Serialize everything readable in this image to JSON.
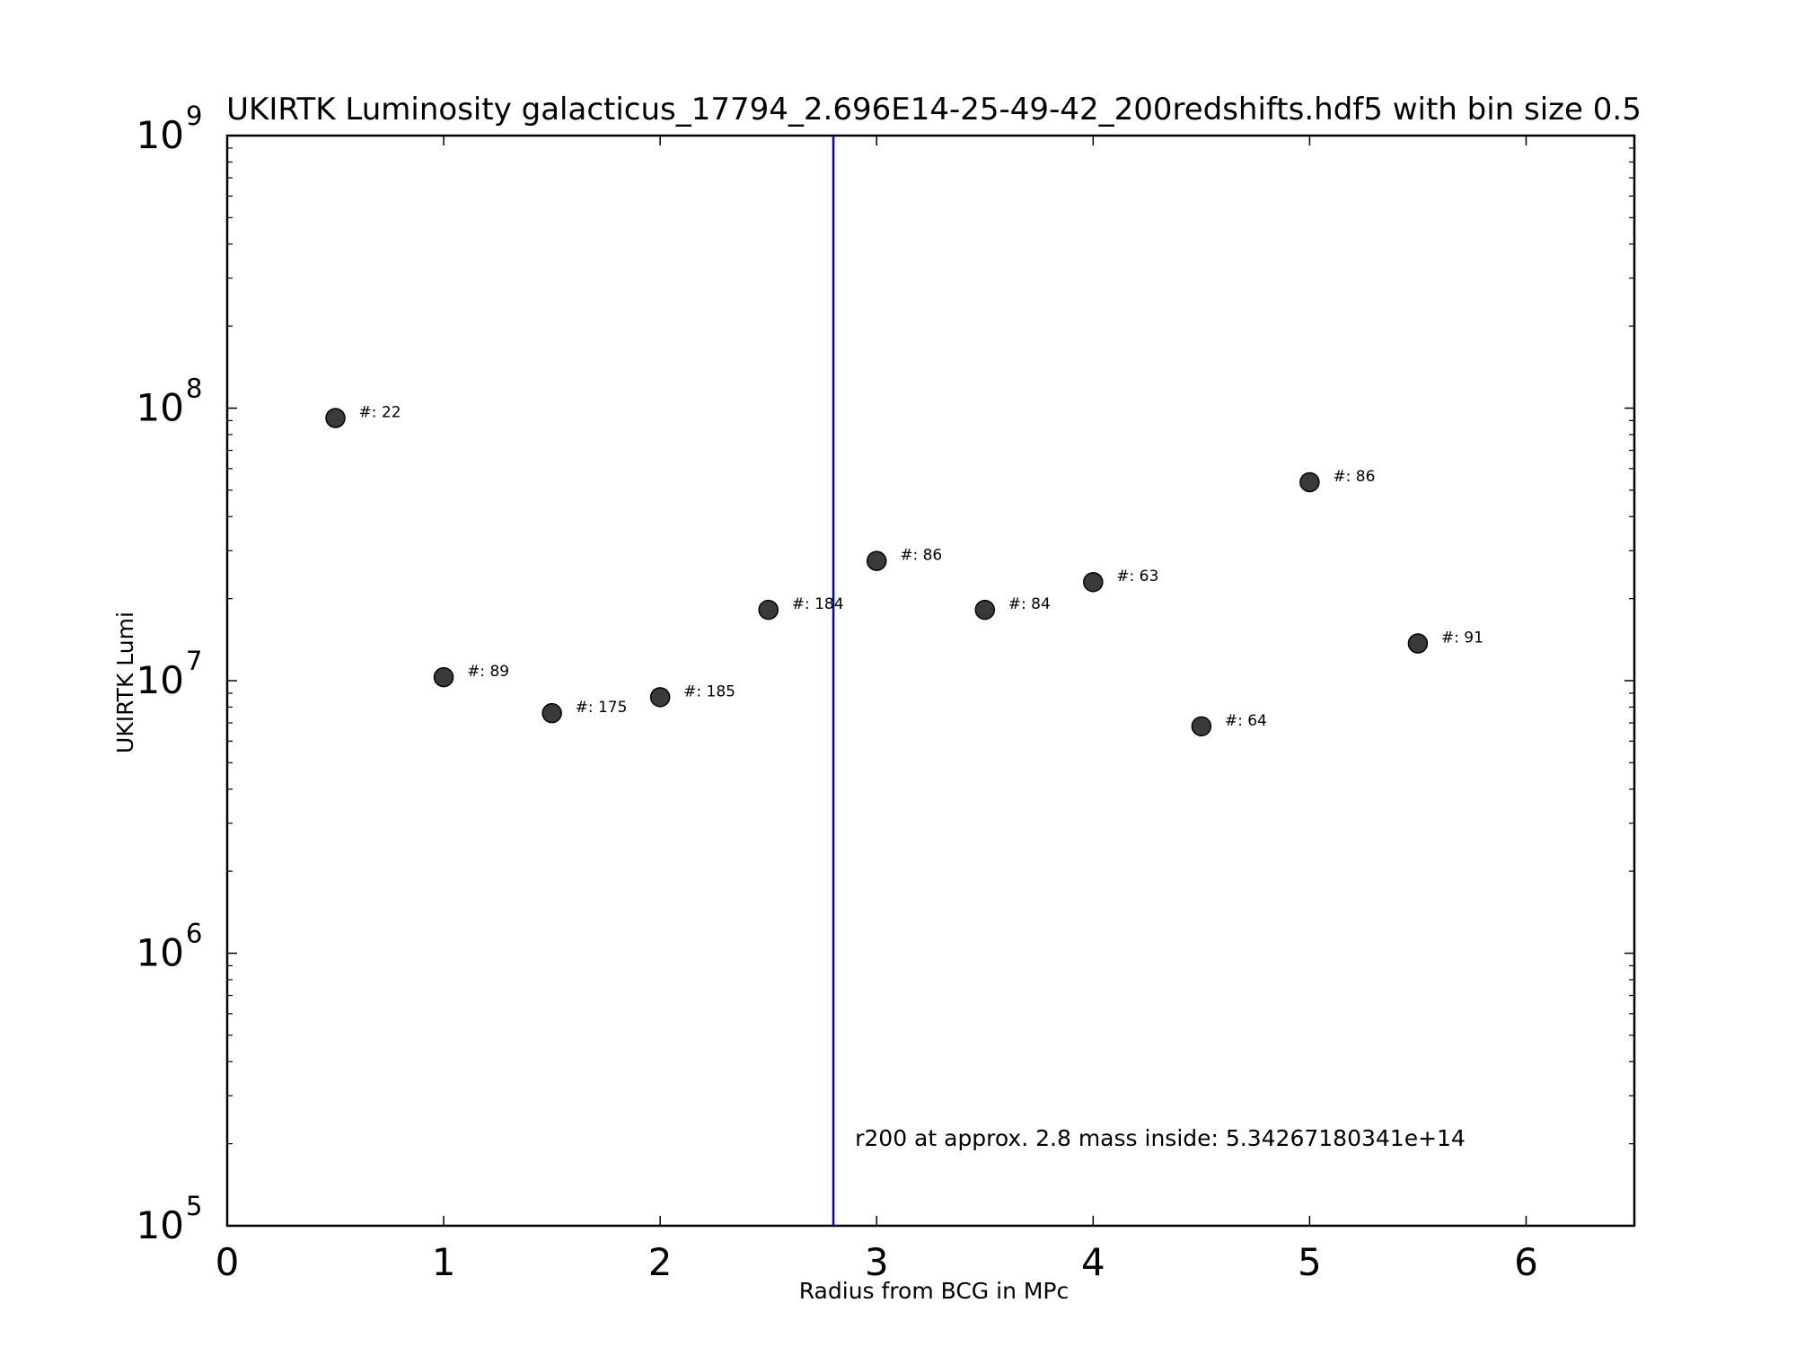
{
  "chart_data": {
    "type": "scatter",
    "title": "UKIRTK Luminosity galacticus_17794_2.696E14-25-49-42_200redshifts.hdf5 with bin size 0.5",
    "xlabel": "Radius from BCG in MPc",
    "ylabel": "UKIRTK Lumi",
    "xlim": [
      0,
      6.5
    ],
    "ylim": [
      100000,
      1000000000
    ],
    "yscale": "log",
    "grid": false,
    "x_ticks": [
      0,
      1,
      2,
      3,
      4,
      5,
      6
    ],
    "y_ticks": [
      {
        "value": 100000,
        "base": "10",
        "exp": "5"
      },
      {
        "value": 1000000,
        "base": "10",
        "exp": "6"
      },
      {
        "value": 10000000,
        "base": "10",
        "exp": "7"
      },
      {
        "value": 100000000,
        "base": "10",
        "exp": "8"
      },
      {
        "value": 1000000000,
        "base": "10",
        "exp": "9"
      }
    ],
    "series": [
      {
        "color": "#3a3a3a",
        "points": [
          {
            "x": 0.5,
            "y": 92000000,
            "label": "#: 22"
          },
          {
            "x": 1.0,
            "y": 10300000,
            "label": "#: 89"
          },
          {
            "x": 1.5,
            "y": 7600000,
            "label": "#: 175"
          },
          {
            "x": 2.0,
            "y": 8700000,
            "label": "#: 185"
          },
          {
            "x": 2.5,
            "y": 18200000,
            "label": "#: 184"
          },
          {
            "x": 3.0,
            "y": 27500000,
            "label": "#: 86"
          },
          {
            "x": 3.5,
            "y": 18200000,
            "label": "#: 84"
          },
          {
            "x": 4.0,
            "y": 23000000,
            "label": "#: 63"
          },
          {
            "x": 4.5,
            "y": 6800000,
            "label": "#: 64"
          },
          {
            "x": 5.0,
            "y": 53500000,
            "label": "#: 86"
          },
          {
            "x": 5.5,
            "y": 13700000,
            "label": "#: 91"
          }
        ]
      }
    ],
    "vline": {
      "x": 2.8,
      "color": "#0000cc"
    },
    "annotation": {
      "text": "r200 at approx. 2.8 mass inside: 5.34267180341e+14",
      "x": 2.9,
      "y": 210000
    }
  }
}
